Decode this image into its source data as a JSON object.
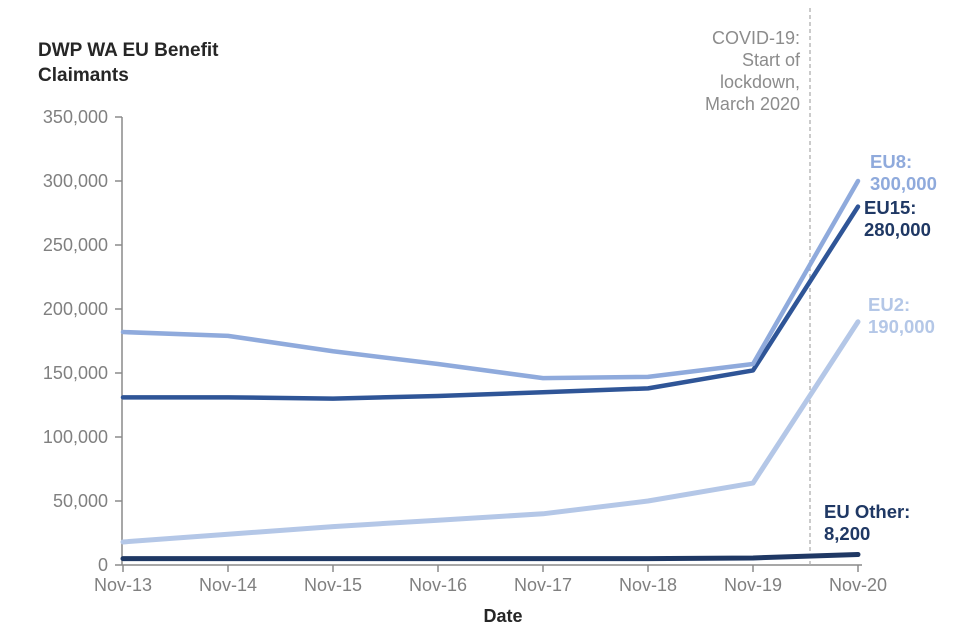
{
  "title": {
    "line1": "DWP WA EU Benefit",
    "line2": "Claimants"
  },
  "x_axis_title": "Date",
  "covid_annotation": {
    "lines": [
      "COVID-19:",
      "Start of",
      "lockdown,",
      "March 2020"
    ]
  },
  "chart_data": {
    "type": "line",
    "title": "DWP WA EU Benefit Claimants",
    "xlabel": "Date",
    "ylabel": "DWP WA EU Benefit Claimants",
    "x_categories": [
      "Nov-13",
      "Nov-14",
      "Nov-15",
      "Nov-16",
      "Nov-17",
      "Nov-18",
      "Nov-19",
      "Nov-20"
    ],
    "ylim": [
      0,
      350000
    ],
    "y_ticks": [
      0,
      50000,
      100000,
      150000,
      200000,
      250000,
      300000,
      350000
    ],
    "y_tick_labels": [
      "0",
      "50,000",
      "100,000",
      "150,000",
      "200,000",
      "250,000",
      "300,000",
      "350,000"
    ],
    "grid": false,
    "legend_position": "end-of-line labels at right",
    "vline": {
      "label": "COVID-19: Start of lockdown, March 2020",
      "x_position": "March 2020 (between Nov-19 and Nov-20)",
      "style": "dashed",
      "color": "#AFAFAF"
    },
    "series": [
      {
        "name": "EU8",
        "color": "#8FAADC",
        "label_color": "#8FAADC",
        "end_label": "EU8:",
        "end_value_label": "300,000",
        "values": [
          182000,
          179000,
          167000,
          157000,
          146000,
          147000,
          157000,
          300000
        ]
      },
      {
        "name": "EU15",
        "color": "#2F5597",
        "label_color": "#1F3864",
        "end_label": "EU15:",
        "end_value_label": "280,000",
        "values": [
          131000,
          131000,
          130000,
          132000,
          135000,
          138000,
          152000,
          280000
        ]
      },
      {
        "name": "EU2",
        "color": "#B4C7E7",
        "label_color": "#B4C7E7",
        "end_label": "EU2:",
        "end_value_label": "190,000",
        "values": [
          18000,
          24000,
          30000,
          35000,
          40000,
          50000,
          64000,
          190000
        ]
      },
      {
        "name": "EU Other",
        "color": "#1F3864",
        "label_color": "#1F3864",
        "end_label": "EU Other:",
        "end_value_label": "8,200",
        "values": [
          5000,
          5000,
          5000,
          5000,
          5000,
          5000,
          5500,
          8200
        ]
      }
    ],
    "axis_color": "#8A8A8A",
    "tick_label_color": "#808080"
  }
}
